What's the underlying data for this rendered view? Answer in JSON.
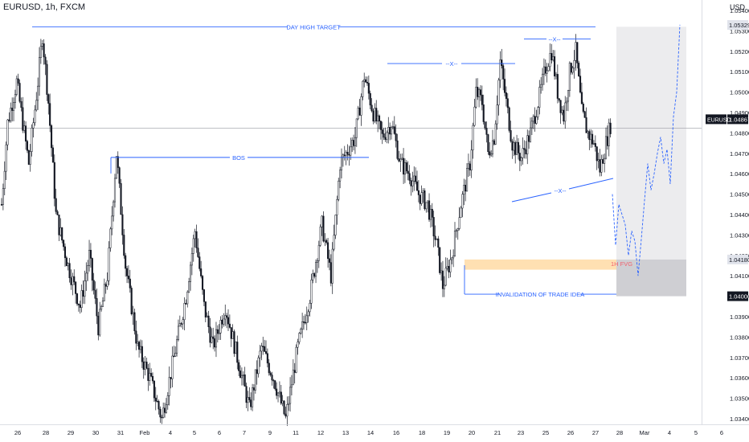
{
  "header": {
    "symbol": "EURUSD, 1h, FXCM",
    "currency": "USD"
  },
  "chart_data": {
    "type": "candlestick",
    "instrument": "EURUSD",
    "timeframe": "1h",
    "broker": "FXCM",
    "ylim": [
      1.0335,
      1.0545
    ],
    "price_ticks": [
      "1.05400",
      "1.05300",
      "1.05200",
      "1.05100",
      "1.05000",
      "1.04900",
      "1.04800",
      "1.04700",
      "1.04600",
      "1.04500",
      "1.04400",
      "1.04300",
      "1.04200",
      "1.04100",
      "1.04000",
      "1.03900",
      "1.03800",
      "1.03700",
      "1.03600",
      "1.03500",
      "1.03400"
    ],
    "date_ticks": [
      "26",
      "28",
      "29",
      "30",
      "31",
      "Feb",
      "4",
      "5",
      "6",
      "7",
      "9",
      "11",
      "12",
      "13",
      "14",
      "16",
      "18",
      "19",
      "20",
      "21",
      "23",
      "25",
      "26",
      "27",
      "28",
      "Mar",
      "4",
      "5",
      "6"
    ],
    "price_path": [
      {
        "t": 0,
        "p": 1.0445
      },
      {
        "t": 4,
        "p": 1.0485
      },
      {
        "t": 10,
        "p": 1.0505
      },
      {
        "t": 18,
        "p": 1.0465
      },
      {
        "t": 24,
        "p": 1.0505
      },
      {
        "t": 27,
        "p": 1.0528
      },
      {
        "t": 31,
        "p": 1.0495
      },
      {
        "t": 36,
        "p": 1.044
      },
      {
        "t": 44,
        "p": 1.0415
      },
      {
        "t": 52,
        "p": 1.0395
      },
      {
        "t": 58,
        "p": 1.042
      },
      {
        "t": 64,
        "p": 1.0385
      },
      {
        "t": 70,
        "p": 1.041
      },
      {
        "t": 76,
        "p": 1.047
      },
      {
        "t": 82,
        "p": 1.0415
      },
      {
        "t": 90,
        "p": 1.0375
      },
      {
        "t": 98,
        "p": 1.036
      },
      {
        "t": 106,
        "p": 1.034
      },
      {
        "t": 114,
        "p": 1.037
      },
      {
        "t": 122,
        "p": 1.04
      },
      {
        "t": 128,
        "p": 1.0432
      },
      {
        "t": 134,
        "p": 1.0395
      },
      {
        "t": 140,
        "p": 1.0375
      },
      {
        "t": 148,
        "p": 1.0395
      },
      {
        "t": 156,
        "p": 1.037
      },
      {
        "t": 164,
        "p": 1.0345
      },
      {
        "t": 172,
        "p": 1.0375
      },
      {
        "t": 180,
        "p": 1.036
      },
      {
        "t": 188,
        "p": 1.034
      },
      {
        "t": 196,
        "p": 1.0375
      },
      {
        "t": 204,
        "p": 1.04
      },
      {
        "t": 212,
        "p": 1.0435
      },
      {
        "t": 218,
        "p": 1.041
      },
      {
        "t": 224,
        "p": 1.0465
      },
      {
        "t": 228,
        "p": 1.047
      },
      {
        "t": 234,
        "p": 1.0478
      },
      {
        "t": 240,
        "p": 1.0508
      },
      {
        "t": 246,
        "p": 1.049
      },
      {
        "t": 252,
        "p": 1.0478
      },
      {
        "t": 258,
        "p": 1.0485
      },
      {
        "t": 264,
        "p": 1.0465
      },
      {
        "t": 270,
        "p": 1.046
      },
      {
        "t": 276,
        "p": 1.045
      },
      {
        "t": 282,
        "p": 1.0445
      },
      {
        "t": 288,
        "p": 1.0425
      },
      {
        "t": 292,
        "p": 1.0405
      },
      {
        "t": 298,
        "p": 1.042
      },
      {
        "t": 304,
        "p": 1.0445
      },
      {
        "t": 310,
        "p": 1.0465
      },
      {
        "t": 314,
        "p": 1.05
      },
      {
        "t": 318,
        "p": 1.0495
      },
      {
        "t": 322,
        "p": 1.047
      },
      {
        "t": 326,
        "p": 1.0478
      },
      {
        "t": 330,
        "p": 1.0515
      },
      {
        "t": 334,
        "p": 1.0495
      },
      {
        "t": 338,
        "p": 1.0475
      },
      {
        "t": 344,
        "p": 1.0468
      },
      {
        "t": 350,
        "p": 1.048
      },
      {
        "t": 356,
        "p": 1.0498
      },
      {
        "t": 360,
        "p": 1.0512
      },
      {
        "t": 364,
        "p": 1.052
      },
      {
        "t": 368,
        "p": 1.05
      },
      {
        "t": 372,
        "p": 1.0488
      },
      {
        "t": 376,
        "p": 1.051
      },
      {
        "t": 380,
        "p": 1.052
      },
      {
        "t": 384,
        "p": 1.049
      },
      {
        "t": 388,
        "p": 1.048
      },
      {
        "t": 392,
        "p": 1.0475
      },
      {
        "t": 396,
        "p": 1.0462
      },
      {
        "t": 400,
        "p": 1.0475
      },
      {
        "t": 404,
        "p": 1.0487
      }
    ],
    "current_price": {
      "label": "EURUSD",
      "price": "1.04867",
      "countdown": "46:00"
    },
    "annotations": [
      {
        "text": "DAY HIGH TARGET",
        "price": 1.0532
      },
      {
        "text": "BOS",
        "price": 1.0468
      },
      {
        "text": "--X--",
        "price": 1.0514
      },
      {
        "text": "--X--",
        "price": 1.0526
      },
      {
        "text": "--X--",
        "price": 1.0458
      },
      {
        "text": "INVALIDATION OF TRADE IDEA",
        "price": 1.0401
      },
      {
        "text": "1H FVG",
        "zone": [
          1.0413,
          1.0418
        ]
      }
    ],
    "price_labels": [
      {
        "price": "1.05329",
        "style": "light"
      },
      {
        "price": "1.04867",
        "style": "dark"
      },
      {
        "price": "1.04180",
        "style": "light"
      },
      {
        "price": "1.04000",
        "style": "dark"
      }
    ],
    "projection": [
      1.045,
      1.0425,
      1.0445,
      1.044,
      1.0435,
      1.042,
      1.0432,
      1.0427,
      1.041,
      1.0428,
      1.0447,
      1.0465,
      1.0452,
      1.046,
      1.047,
      1.0478,
      1.0465,
      1.0472,
      1.0455,
      1.0488,
      1.05,
      1.0533
    ],
    "colors": {
      "candles": "#131722",
      "lines": "#2962ff",
      "fvg": "#ffe0b2",
      "target_box": "#ececee",
      "stop_box": "#cfcfd3",
      "fvg_text": "#f0616d"
    }
  }
}
